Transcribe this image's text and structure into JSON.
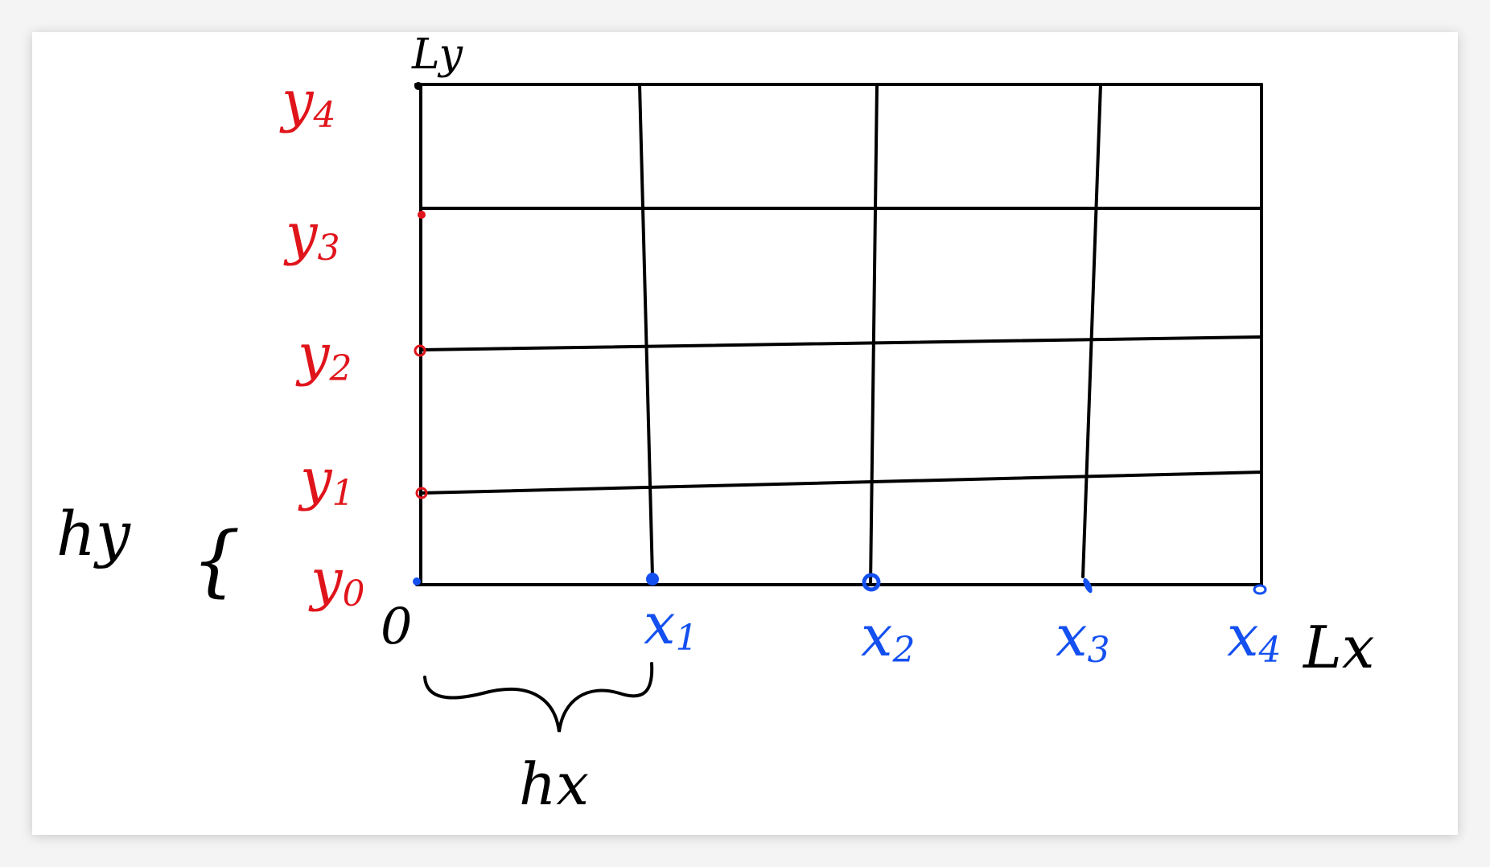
{
  "colors": {
    "y_labels": "#e0141b",
    "x_labels": "#1450f0",
    "ink": "#000000",
    "background": "#ffffff"
  },
  "labels": {
    "origin": "0",
    "ly": "Ly",
    "lx": "Lx",
    "hx": "hx",
    "hy": "hy",
    "brace_hy": "{",
    "y": [
      {
        "base": "y",
        "sub": "0"
      },
      {
        "base": "y",
        "sub": "1"
      },
      {
        "base": "y",
        "sub": "2"
      },
      {
        "base": "y",
        "sub": "3"
      },
      {
        "base": "y",
        "sub": "4"
      }
    ],
    "x": [
      {
        "base": "x",
        "sub": "1"
      },
      {
        "base": "x",
        "sub": "2"
      },
      {
        "base": "x",
        "sub": "3"
      },
      {
        "base": "x",
        "sub": "4"
      }
    ]
  }
}
